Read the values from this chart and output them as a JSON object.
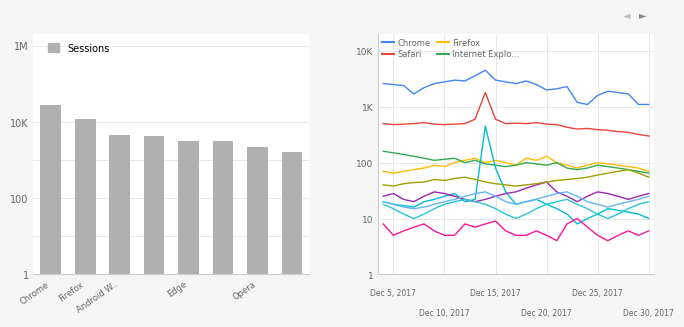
{
  "bar_cats": [
    "Chrome",
    "Firefox",
    "Android W..",
    "",
    "Edge",
    "",
    "Opera",
    ""
  ],
  "bar_vals": [
    28000,
    12000,
    4500,
    4200,
    3200,
    3100,
    2200,
    1600
  ],
  "bar_color": "#b0b0b0",
  "bar_legend": "Sessions",
  "ts_chrome": [
    2600,
    2500,
    2400,
    1700,
    2200,
    2600,
    2800,
    3000,
    2900,
    3600,
    4500,
    3000,
    2800,
    2600,
    2900,
    2500,
    2000,
    2100,
    2300,
    1200,
    1100,
    1600,
    1900,
    1800,
    1700,
    1100,
    1100
  ],
  "ts_safari": [
    500,
    480,
    490,
    500,
    520,
    490,
    480,
    490,
    500,
    600,
    1800,
    600,
    500,
    510,
    500,
    520,
    490,
    480,
    430,
    400,
    410,
    390,
    380,
    360,
    350,
    320,
    300
  ],
  "ts_firefox": [
    70,
    65,
    70,
    75,
    80,
    90,
    85,
    100,
    110,
    120,
    100,
    110,
    100,
    90,
    120,
    110,
    130,
    100,
    90,
    80,
    90,
    100,
    95,
    90,
    85,
    80,
    70
  ],
  "ts_ie": [
    160,
    150,
    140,
    130,
    120,
    110,
    115,
    120,
    100,
    110,
    95,
    90,
    85,
    90,
    100,
    95,
    90,
    100,
    80,
    75,
    80,
    90,
    85,
    80,
    75,
    70,
    65
  ],
  "ts_teal": [
    20,
    18,
    17,
    16,
    20,
    22,
    25,
    28,
    20,
    22,
    450,
    80,
    30,
    18,
    20,
    22,
    18,
    15,
    12,
    8,
    10,
    12,
    15,
    14,
    13,
    12,
    10
  ],
  "ts_pink": [
    8,
    5,
    6,
    7,
    8,
    6,
    5,
    5,
    8,
    7,
    8,
    9,
    6,
    5,
    5,
    6,
    5,
    4,
    8,
    10,
    7,
    5,
    4,
    5,
    6,
    5,
    6
  ],
  "ts_purple": [
    25,
    28,
    22,
    20,
    25,
    30,
    28,
    25,
    22,
    20,
    22,
    25,
    28,
    30,
    35,
    40,
    45,
    30,
    25,
    20,
    25,
    30,
    28,
    25,
    22,
    25,
    28
  ],
  "ts_cyan": [
    18,
    15,
    12,
    10,
    12,
    15,
    18,
    20,
    22,
    20,
    18,
    15,
    12,
    10,
    12,
    15,
    18,
    20,
    22,
    18,
    15,
    12,
    10,
    12,
    15,
    18,
    20
  ],
  "ts_olive": [
    40,
    38,
    42,
    44,
    45,
    50,
    48,
    52,
    55,
    50,
    45,
    42,
    40,
    38,
    40,
    42,
    45,
    48,
    50,
    52,
    55,
    60,
    65,
    70,
    75,
    65,
    55
  ],
  "ts_lightblue": [
    20,
    18,
    16,
    15,
    16,
    18,
    20,
    22,
    25,
    28,
    30,
    25,
    20,
    18,
    20,
    22,
    25,
    28,
    30,
    25,
    20,
    18,
    16,
    18,
    20,
    22,
    25
  ],
  "colors": {
    "chrome": "#4285F4",
    "safari": "#EA4335",
    "firefox": "#FBBC04",
    "ie": "#34A853",
    "teal": "#00BCD4",
    "pink": "#FF1493",
    "purple": "#9C27B0",
    "cyan": "#26C6DA",
    "olive": "#9E9D00",
    "lightblue": "#64B5F6"
  },
  "legend_labels": [
    "Chrome",
    "Safari",
    "Firefox",
    "Internet Explo..."
  ],
  "legend_color_keys": [
    "chrome",
    "safari",
    "firefox",
    "ie"
  ],
  "bg_color": "#f5f5f5",
  "plot_bg": "#ffffff",
  "grid_color": "#e8e8e8",
  "axis_color": "#cccccc",
  "text_color": "#666666",
  "top_xlabels": {
    "1": "Dec 5, 2017",
    "11": "Dec 15, 2017",
    "21": "Dec 25, 2017"
  },
  "bot_xlabels": {
    "6": "Dec 10, 2017",
    "16": "Dec 20, 2017",
    "26": "Dec 30, 2017"
  }
}
